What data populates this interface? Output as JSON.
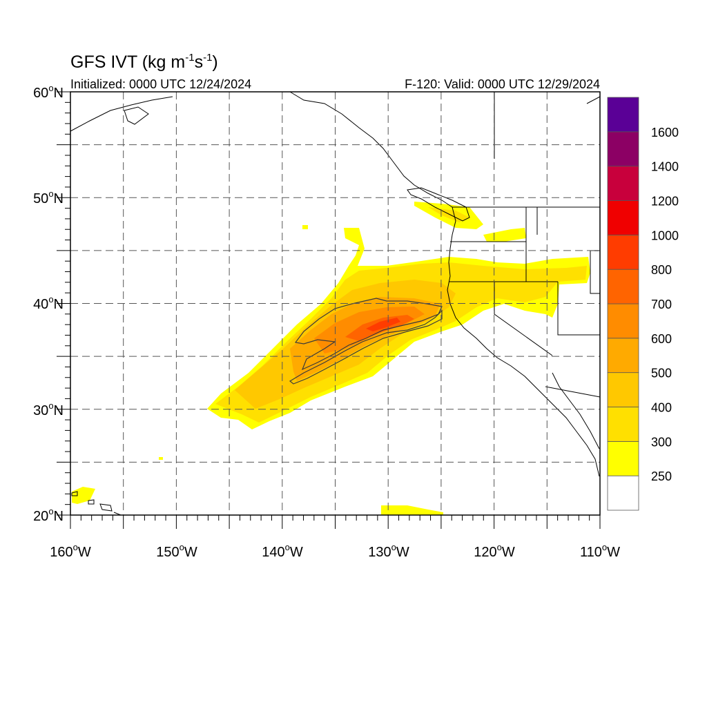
{
  "header": {
    "title_main": "GFS IVT (kg m",
    "title_exp1": "-1",
    "title_mid": "s",
    "title_exp2": "-1",
    "title_end": ")",
    "initialized": "Initialized: 0000 UTC 12/24/2024",
    "valid": "F-120: Valid: 0000 UTC 12/29/2024"
  },
  "map": {
    "lon_range": [
      -160,
      -110
    ],
    "lat_range": [
      20,
      60
    ],
    "lat_labels": [
      {
        "deg": "60",
        "suffix": "N"
      },
      {
        "deg": "50",
        "suffix": "N"
      },
      {
        "deg": "40",
        "suffix": "N"
      },
      {
        "deg": "30",
        "suffix": "N"
      },
      {
        "deg": "20",
        "suffix": "N"
      }
    ],
    "lon_labels": [
      {
        "deg": "160",
        "suffix": "W"
      },
      {
        "deg": "150",
        "suffix": "W"
      },
      {
        "deg": "140",
        "suffix": "W"
      },
      {
        "deg": "130",
        "suffix": "W"
      },
      {
        "deg": "120",
        "suffix": "W"
      },
      {
        "deg": "110",
        "suffix": "W"
      }
    ],
    "degree_symbol": "o"
  },
  "colorbar": {
    "labels": [
      "1600",
      "1400",
      "1200",
      "1000",
      "800",
      "700",
      "600",
      "500",
      "400",
      "300",
      "250"
    ],
    "colors": [
      "#ffffff",
      "#ffff00",
      "#ffe000",
      "#ffc800",
      "#ffaa00",
      "#ff8c00",
      "#ff6400",
      "#ff3c00",
      "#f00000",
      "#c8003c",
      "#8c0064",
      "#5a0096"
    ]
  }
}
